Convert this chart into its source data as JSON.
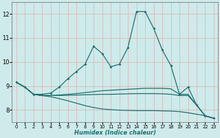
{
  "xlabel": "Humidex (Indice chaleur)",
  "bg_color": "#ceeaea",
  "grid_color": "#ddb8b8",
  "line_color": "#1e7070",
  "xlim": [
    -0.5,
    23.5
  ],
  "ylim": [
    7.5,
    12.5
  ],
  "yticks": [
    8,
    9,
    10,
    11,
    12
  ],
  "xticks": [
    0,
    1,
    2,
    3,
    4,
    5,
    6,
    7,
    8,
    9,
    10,
    11,
    12,
    13,
    14,
    15,
    16,
    17,
    18,
    19,
    20,
    21,
    22,
    23
  ],
  "line1_x": [
    0,
    1,
    2,
    3,
    4,
    5,
    6,
    7,
    8,
    9,
    10,
    11,
    12,
    13,
    14,
    15,
    16,
    17,
    18,
    19,
    20,
    21,
    22,
    23
  ],
  "line1_y": [
    9.15,
    8.95,
    8.65,
    8.65,
    8.7,
    8.95,
    9.3,
    9.6,
    9.9,
    10.65,
    10.35,
    9.8,
    9.9,
    10.6,
    12.1,
    12.1,
    11.4,
    10.5,
    9.85,
    8.65,
    8.95,
    8.2,
    7.75,
    7.65
  ],
  "line2_x": [
    0,
    1,
    2,
    3,
    4,
    5,
    6,
    7,
    8,
    9,
    10,
    11,
    12,
    13,
    14,
    15,
    16,
    17,
    18,
    19,
    20,
    21,
    22,
    23
  ],
  "line2_y": [
    9.15,
    8.95,
    8.65,
    8.6,
    8.6,
    8.62,
    8.65,
    8.68,
    8.72,
    8.76,
    8.8,
    8.82,
    8.84,
    8.86,
    8.88,
    8.9,
    8.9,
    8.9,
    8.88,
    8.65,
    8.65,
    8.2,
    7.75,
    7.65
  ],
  "line3_x": [
    0,
    1,
    2,
    3,
    4,
    5,
    6,
    7,
    8,
    9,
    10,
    11,
    12,
    13,
    14,
    15,
    16,
    17,
    18,
    19,
    20,
    21,
    22,
    23
  ],
  "line3_y": [
    9.15,
    8.95,
    8.65,
    8.6,
    8.6,
    8.6,
    8.61,
    8.62,
    8.63,
    8.64,
    8.65,
    8.65,
    8.66,
    8.67,
    8.68,
    8.68,
    8.68,
    8.67,
    8.65,
    8.6,
    8.6,
    8.2,
    7.75,
    7.65
  ],
  "line4_x": [
    0,
    1,
    2,
    3,
    4,
    5,
    6,
    7,
    8,
    9,
    10,
    11,
    12,
    13,
    14,
    15,
    16,
    17,
    18,
    19,
    20,
    21,
    22,
    23
  ],
  "line4_y": [
    9.15,
    8.95,
    8.65,
    8.6,
    8.55,
    8.47,
    8.38,
    8.28,
    8.18,
    8.1,
    8.04,
    8.01,
    7.99,
    7.98,
    7.97,
    7.97,
    7.97,
    7.96,
    7.95,
    7.93,
    7.88,
    7.82,
    7.76,
    7.65
  ],
  "markersize": 2.0,
  "linewidth": 0.9
}
